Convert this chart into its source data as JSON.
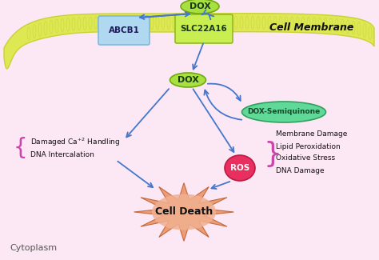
{
  "background_color": "#fce8f4",
  "membrane_color": "#dde84a",
  "membrane_border_color": "#c8d030",
  "abcb1_label": "ABCB1",
  "abcb1_color": "#b0d8f0",
  "abcb1_border": "#80b8d8",
  "slc_label": "SLC22A16",
  "slc_color": "#c8ee50",
  "slc_border": "#90bb20",
  "dox_top_label": "DOX",
  "dox_color": "#a8e040",
  "dox_border": "#70aa10",
  "dox_semiq_label": "DOX-Semiquinone",
  "dox_semiq_color": "#60d898",
  "dox_semiq_border": "#30a060",
  "ros_label": "ROS",
  "ros_color": "#e83060",
  "ros_border": "#c01840",
  "cell_death_label": "Cell Death",
  "cell_membrane_label": "Cell Membrane",
  "cytoplasm_label": "Cytoplasm",
  "right_text": [
    "Membrane Damage",
    "Lipid Peroxidation",
    "Oxidative Stress",
    "DNA Damage"
  ],
  "arrow_color": "#4477cc",
  "brace_color": "#cc44aa",
  "text_color": "#111111",
  "dark_text": "#111111"
}
